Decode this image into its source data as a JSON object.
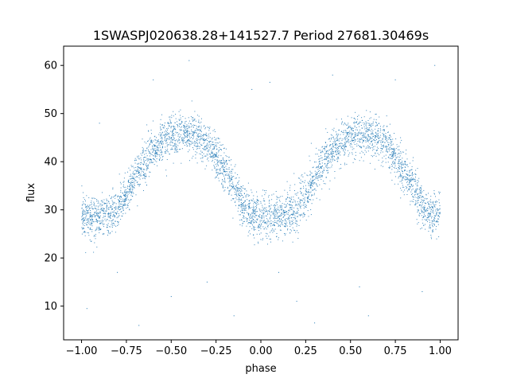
{
  "chart_data": {
    "type": "scatter",
    "title": "1SWASPJ020638.28+141527.7 Period 27681.30469s",
    "xlabel": "phase",
    "ylabel": "flux",
    "xlim": [
      -1.1,
      1.1
    ],
    "ylim": [
      3,
      64
    ],
    "x_ticks": [
      -1.0,
      -0.75,
      -0.5,
      -0.25,
      0.0,
      0.25,
      0.5,
      0.75,
      1.0
    ],
    "x_tick_labels": [
      "−1.00",
      "−0.75",
      "−0.50",
      "−0.25",
      "0.00",
      "0.25",
      "0.50",
      "0.75",
      "1.00"
    ],
    "y_ticks": [
      10,
      20,
      30,
      40,
      50,
      60
    ],
    "y_tick_labels": [
      "10",
      "20",
      "30",
      "40",
      "50",
      "60"
    ],
    "grid": false,
    "marker_color": "#1f77b4",
    "series": [
      {
        "name": "",
        "model_curve": {
          "x": [
            -1.0,
            -0.95,
            -0.9,
            -0.85,
            -0.8,
            -0.75,
            -0.7,
            -0.65,
            -0.6,
            -0.55,
            -0.5,
            -0.45,
            -0.4,
            -0.35,
            -0.3,
            -0.25,
            -0.2,
            -0.15,
            -0.1,
            -0.05,
            0.0,
            0.05,
            0.1,
            0.15,
            0.2,
            0.25,
            0.3,
            0.35,
            0.4,
            0.45,
            0.5,
            0.55,
            0.6,
            0.65,
            0.7,
            0.75,
            0.8,
            0.85,
            0.9,
            0.95,
            1.0
          ],
          "y": [
            29,
            28.5,
            28.5,
            29,
            30,
            33,
            37,
            40,
            42.5,
            44,
            45,
            45.5,
            45.5,
            45,
            43.5,
            41,
            38,
            34.5,
            31,
            29,
            28.5,
            28.5,
            28.5,
            29,
            30,
            33,
            37,
            40,
            42.5,
            44,
            45,
            45.5,
            45.5,
            45,
            43.5,
            41,
            38,
            34.5,
            31,
            29,
            29
          ]
        },
        "scatter_sd": 2.2,
        "outliers": [
          [
            -0.97,
            9.5
          ],
          [
            -0.9,
            48
          ],
          [
            -0.8,
            17
          ],
          [
            -0.6,
            57
          ],
          [
            -0.5,
            12
          ],
          [
            -0.4,
            61
          ],
          [
            -0.3,
            15
          ],
          [
            -0.05,
            55
          ],
          [
            0.05,
            56.5
          ],
          [
            0.1,
            17
          ],
          [
            0.2,
            11
          ],
          [
            0.4,
            58
          ],
          [
            0.6,
            8
          ],
          [
            0.75,
            57
          ],
          [
            0.9,
            13
          ],
          [
            0.97,
            60
          ],
          [
            -0.68,
            6
          ],
          [
            0.3,
            6.5
          ],
          [
            0.55,
            14
          ],
          [
            -0.15,
            8
          ]
        ]
      }
    ]
  }
}
